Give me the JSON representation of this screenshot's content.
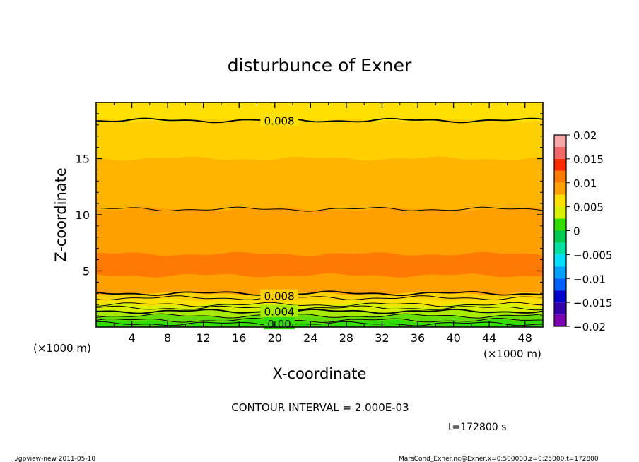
{
  "chart_data": {
    "type": "heatmap",
    "title": "disturbunce of Exner",
    "xlabel": "X-coordinate",
    "ylabel": "Z-coordinate",
    "x_unit_label": "(×1000 m)",
    "y_unit_label": "(×1000 m)",
    "xlim": [
      0,
      50
    ],
    "ylim": [
      0,
      20
    ],
    "x_ticks": [
      4,
      8,
      12,
      16,
      20,
      24,
      28,
      32,
      36,
      40,
      44,
      48
    ],
    "y_ticks": [
      5,
      10,
      15
    ],
    "colorbar": {
      "ticks": [
        "0.02",
        "0.015",
        "0.01",
        "0.005",
        "0",
        "−0.005",
        "−0.01",
        "−0.015",
        "−0.02"
      ],
      "bands": [
        {
          "from": 0.0175,
          "to": 0.02,
          "color": "#f7a6a6"
        },
        {
          "from": 0.015,
          "to": 0.0175,
          "color": "#f06868"
        },
        {
          "from": 0.0125,
          "to": 0.015,
          "color": "#ff2a00"
        },
        {
          "from": 0.01,
          "to": 0.0125,
          "color": "#ff7a00"
        },
        {
          "from": 0.0075,
          "to": 0.01,
          "color": "#ffa000"
        },
        {
          "from": 0.005,
          "to": 0.0075,
          "color": "#ffe000"
        },
        {
          "from": 0.0025,
          "to": 0.005,
          "color": "#d8f000"
        },
        {
          "from": 0.0,
          "to": 0.0025,
          "color": "#33dd00"
        },
        {
          "from": -0.0025,
          "to": 0.0,
          "color": "#00cc55"
        },
        {
          "from": -0.005,
          "to": -0.0025,
          "color": "#00e0a0"
        },
        {
          "from": -0.0075,
          "to": -0.005,
          "color": "#00ddff"
        },
        {
          "from": -0.01,
          "to": -0.0075,
          "color": "#00a0ff"
        },
        {
          "from": -0.0125,
          "to": -0.01,
          "color": "#0060ff"
        },
        {
          "from": -0.015,
          "to": -0.0125,
          "color": "#0000cc"
        },
        {
          "from": -0.0175,
          "to": -0.015,
          "color": "#3300aa"
        },
        {
          "from": -0.02,
          "to": -0.0175,
          "color": "#7a00b0"
        }
      ]
    },
    "layers": [
      {
        "from_z": 18.4,
        "to_z": 20.0,
        "color": "#ffe000"
      },
      {
        "from_z": 15.0,
        "to_z": 18.4,
        "color": "#ffd000"
      },
      {
        "from_z": 10.5,
        "to_z": 15.0,
        "color": "#ffb400"
      },
      {
        "from_z": 6.5,
        "to_z": 10.5,
        "color": "#ffa000"
      },
      {
        "from_z": 4.6,
        "to_z": 6.5,
        "color": "#ff7a00"
      },
      {
        "from_z": 3.0,
        "to_z": 4.6,
        "color": "#ffa000"
      },
      {
        "from_z": 2.5,
        "to_z": 3.0,
        "color": "#ffd000"
      },
      {
        "from_z": 2.0,
        "to_z": 2.5,
        "color": "#ffe000"
      },
      {
        "from_z": 1.5,
        "to_z": 2.0,
        "color": "#d8f000"
      },
      {
        "from_z": 1.0,
        "to_z": 1.5,
        "color": "#a8ea00"
      },
      {
        "from_z": 0.5,
        "to_z": 1.0,
        "color": "#66dd00"
      },
      {
        "from_z": 0.0,
        "to_z": 0.5,
        "color": "#33dd00"
      }
    ],
    "contours": [
      {
        "z": 18.4,
        "weight": "bold"
      },
      {
        "z": 10.5,
        "weight": "thin"
      },
      {
        "z": 3.0,
        "weight": "bold"
      },
      {
        "z": 2.6,
        "weight": "thin"
      },
      {
        "z": 2.0,
        "weight": "thin"
      },
      {
        "z": 1.7,
        "weight": "thin"
      },
      {
        "z": 1.4,
        "weight": "bold"
      },
      {
        "z": 1.0,
        "weight": "thin"
      },
      {
        "z": 0.6,
        "weight": "thin"
      },
      {
        "z": 0.3,
        "weight": "thin"
      }
    ],
    "contour_labels": [
      {
        "text": "0.008",
        "x": 20.5,
        "z": 18.4
      },
      {
        "text": "0.008",
        "x": 20.5,
        "z": 2.8
      },
      {
        "text": "0.004",
        "x": 20.5,
        "z": 1.4
      },
      {
        "text": "0.00",
        "x": 20.5,
        "z": 0.3
      }
    ]
  },
  "contour_interval": "CONTOUR INTERVAL = 2.000E-03",
  "time_label": "t=172800 s",
  "footer_left": "./gpview-new  2011-05-10",
  "footer_right": "MarsCond_Exner.nc@Exner,x=0:500000,z=0:25000,t=172800"
}
